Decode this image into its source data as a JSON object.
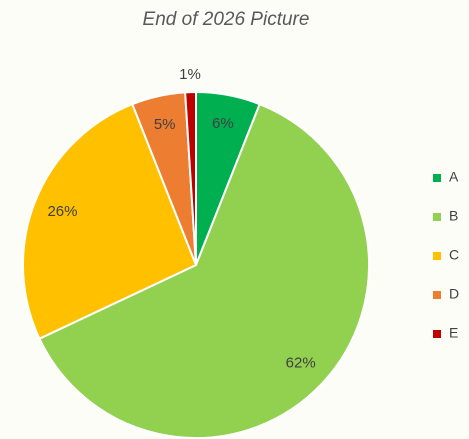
{
  "chart_data": {
    "type": "pie",
    "title": "End of 2026 Picture",
    "categories": [
      "A",
      "B",
      "C",
      "D",
      "E"
    ],
    "values": [
      6,
      62,
      26,
      5,
      1
    ],
    "value_labels": [
      "6%",
      "62%",
      "26%",
      "5%",
      "1%"
    ],
    "colors": [
      "#00b050",
      "#92d050",
      "#ffc000",
      "#ed7d31",
      "#c00000"
    ],
    "legend": "right"
  }
}
